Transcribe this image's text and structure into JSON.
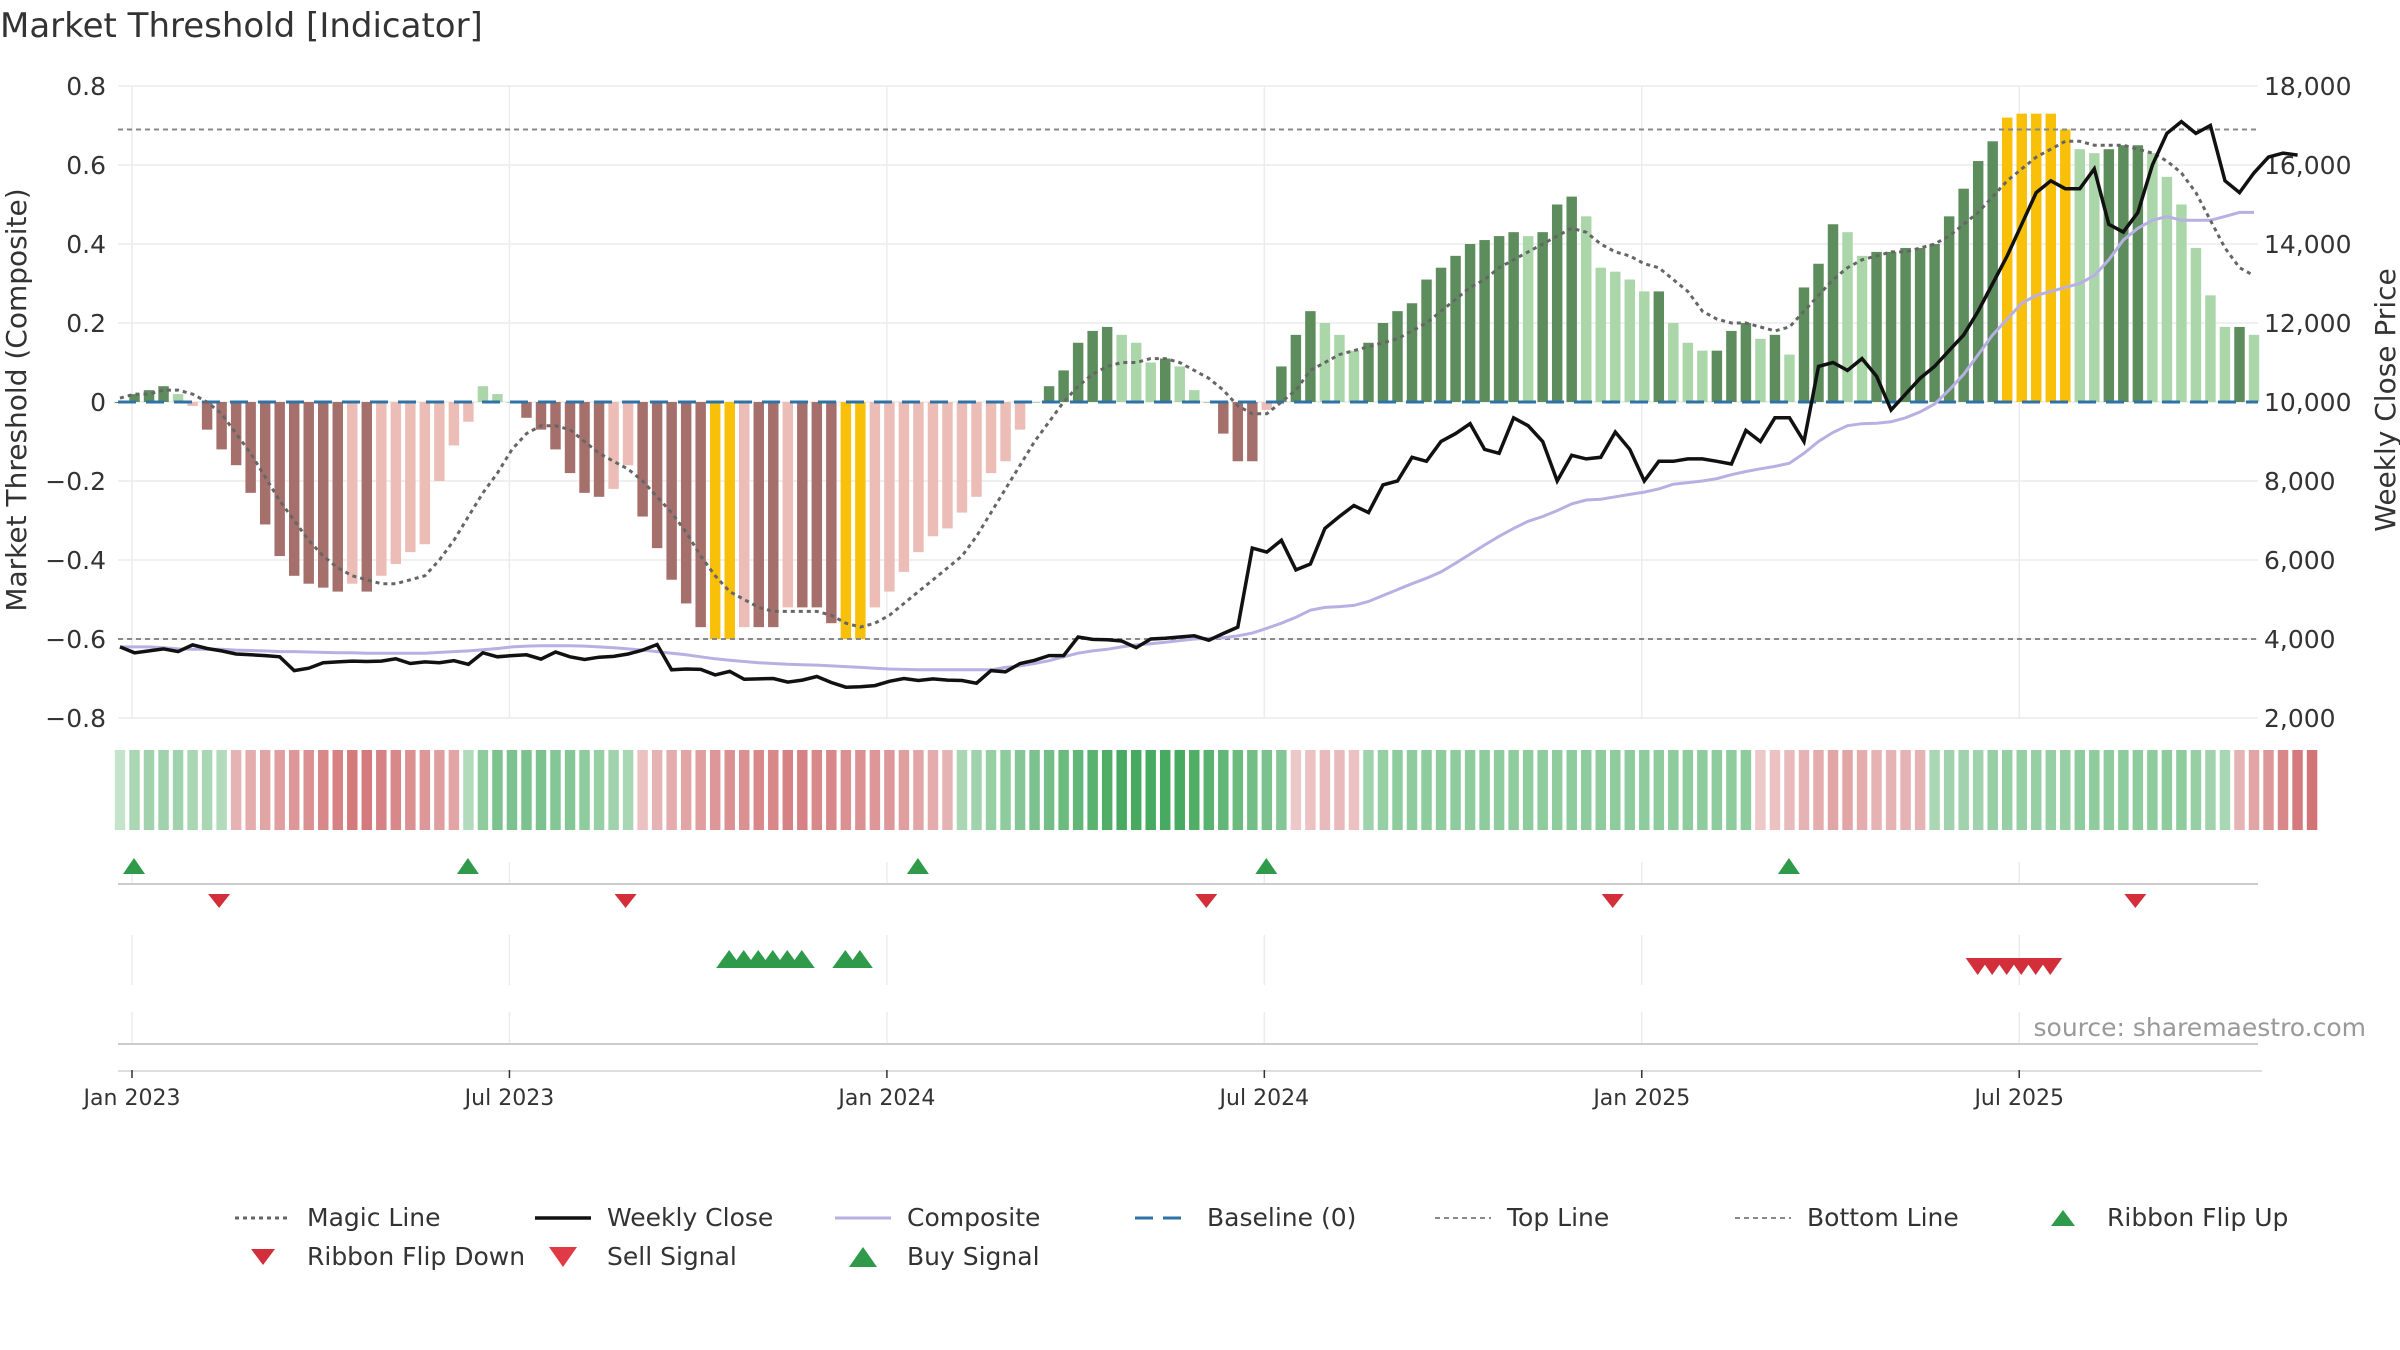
{
  "title": "Market Threshold [Indicator]",
  "source": "source: sharemaestro.com",
  "colors": {
    "bar_pos_strong": "#5d8d5d",
    "bar_pos_light": "#abd6a9",
    "bar_neg_strong": "#a5706b",
    "bar_neg_light": "#ecbdb7",
    "bar_extreme": "#f8c009",
    "magic": "#666666",
    "weekly_close": "#111111",
    "composite": "#b8b0e2",
    "baseline": "#2f73a6",
    "threshold": "#888888",
    "buy": "#2e9a4a",
    "sell": "#d32f3a",
    "grid": "#ececec"
  },
  "chart_data": {
    "type": "bar",
    "x_tick_labels": [
      "Jan 2023",
      "Jul 2023",
      "Jan 2024",
      "Jul 2024",
      "Jan 2025",
      "Jul 2025"
    ],
    "left_axis": {
      "label": "Market Threshold (Composite)",
      "range": [
        -0.8,
        0.8
      ],
      "ticks": [
        "−0.8",
        "−0.6",
        "−0.4",
        "−0.2",
        "0",
        "0.2",
        "0.4",
        "0.6",
        "0.8"
      ]
    },
    "right_axis": {
      "label": "Weekly Close Price",
      "range": [
        2000,
        18000
      ],
      "ticks": [
        "2,000",
        "4,000",
        "6,000",
        "8,000",
        "10,000",
        "12,000",
        "14,000",
        "16,000",
        "18,000"
      ]
    },
    "top_line": 0.69,
    "bottom_line": -0.6,
    "series": [
      {
        "name": "Composite (bars)",
        "values": [
          0.0,
          0.02,
          0.03,
          0.04,
          0.02,
          -0.01,
          -0.07,
          -0.12,
          -0.16,
          -0.23,
          -0.31,
          -0.39,
          -0.44,
          -0.46,
          -0.47,
          -0.48,
          -0.46,
          -0.48,
          -0.44,
          -0.41,
          -0.38,
          -0.36,
          -0.2,
          -0.11,
          -0.05,
          0.04,
          0.02,
          0.0,
          -0.04,
          -0.07,
          -0.12,
          -0.18,
          -0.23,
          -0.24,
          -0.22,
          -0.16,
          -0.29,
          -0.37,
          -0.45,
          -0.51,
          -0.57,
          -0.6,
          -0.6,
          -0.57,
          -0.57,
          -0.57,
          -0.52,
          -0.52,
          -0.52,
          -0.56,
          -0.6,
          -0.6,
          -0.52,
          -0.48,
          -0.43,
          -0.38,
          -0.34,
          -0.32,
          -0.28,
          -0.24,
          -0.18,
          -0.15,
          -0.07,
          0.0,
          0.04,
          0.08,
          0.15,
          0.18,
          0.19,
          0.17,
          0.15,
          0.1,
          0.11,
          0.09,
          0.03,
          0.0,
          -0.08,
          -0.15,
          -0.15,
          -0.02,
          0.09,
          0.17,
          0.23,
          0.2,
          0.17,
          0.13,
          0.15,
          0.2,
          0.23,
          0.25,
          0.31,
          0.34,
          0.37,
          0.4,
          0.41,
          0.42,
          0.43,
          0.42,
          0.43,
          0.5,
          0.52,
          0.47,
          0.34,
          0.33,
          0.31,
          0.28,
          0.28,
          0.2,
          0.15,
          0.13,
          0.13,
          0.18,
          0.2,
          0.16,
          0.17,
          0.12,
          0.29,
          0.35,
          0.45,
          0.43,
          0.37,
          0.38,
          0.38,
          0.39,
          0.39,
          0.4,
          0.47,
          0.54,
          0.61,
          0.66,
          0.72,
          0.73,
          0.73,
          0.73,
          0.69,
          0.64,
          0.63,
          0.64,
          0.65,
          0.65,
          0.63,
          0.57,
          0.5,
          0.39,
          0.27,
          0.19,
          0.19,
          0.17
        ]
      },
      {
        "name": "Magic Line",
        "values": [
          0.01,
          0.02,
          0.02,
          0.03,
          0.03,
          0.02,
          0.0,
          -0.03,
          -0.08,
          -0.13,
          -0.19,
          -0.25,
          -0.3,
          -0.35,
          -0.39,
          -0.42,
          -0.44,
          -0.45,
          -0.46,
          -0.46,
          -0.45,
          -0.44,
          -0.4,
          -0.35,
          -0.29,
          -0.23,
          -0.18,
          -0.12,
          -0.08,
          -0.06,
          -0.06,
          -0.07,
          -0.1,
          -0.13,
          -0.15,
          -0.17,
          -0.2,
          -0.24,
          -0.28,
          -0.33,
          -0.39,
          -0.44,
          -0.48,
          -0.5,
          -0.52,
          -0.53,
          -0.53,
          -0.53,
          -0.53,
          -0.54,
          -0.56,
          -0.57,
          -0.56,
          -0.54,
          -0.51,
          -0.48,
          -0.45,
          -0.42,
          -0.39,
          -0.34,
          -0.28,
          -0.22,
          -0.16,
          -0.1,
          -0.05,
          0.0,
          0.04,
          0.07,
          0.09,
          0.1,
          0.1,
          0.11,
          0.11,
          0.1,
          0.08,
          0.06,
          0.03,
          -0.01,
          -0.03,
          -0.03,
          0.0,
          0.03,
          0.08,
          0.1,
          0.12,
          0.13,
          0.14,
          0.15,
          0.16,
          0.18,
          0.2,
          0.23,
          0.26,
          0.29,
          0.31,
          0.34,
          0.36,
          0.38,
          0.4,
          0.42,
          0.44,
          0.43,
          0.4,
          0.38,
          0.37,
          0.35,
          0.34,
          0.31,
          0.28,
          0.23,
          0.21,
          0.2,
          0.2,
          0.19,
          0.18,
          0.19,
          0.23,
          0.27,
          0.31,
          0.34,
          0.36,
          0.37,
          0.38,
          0.38,
          0.39,
          0.4,
          0.42,
          0.45,
          0.48,
          0.52,
          0.56,
          0.59,
          0.62,
          0.64,
          0.66,
          0.66,
          0.65,
          0.65,
          0.65,
          0.64,
          0.63,
          0.61,
          0.58,
          0.53,
          0.46,
          0.39,
          0.34,
          0.32
        ]
      },
      {
        "name": "Weekly Close",
        "values": [
          3800,
          3650,
          3700,
          3750,
          3680,
          3850,
          3760,
          3700,
          3620,
          3600,
          3580,
          3550,
          3200,
          3260,
          3400,
          3420,
          3440,
          3430,
          3440,
          3500,
          3380,
          3420,
          3400,
          3450,
          3360,
          3650,
          3550,
          3580,
          3600,
          3490,
          3670,
          3550,
          3480,
          3540,
          3560,
          3620,
          3720,
          3860,
          3220,
          3240,
          3230,
          3090,
          3180,
          2980,
          2990,
          3000,
          2910,
          2960,
          3050,
          2900,
          2780,
          2790,
          2820,
          2930,
          3000,
          2950,
          2990,
          2960,
          2950,
          2880,
          3200,
          3170,
          3380,
          3460,
          3580,
          3580,
          4050,
          3990,
          3980,
          3950,
          3780,
          4000,
          4020,
          4050,
          4080,
          3970,
          4140,
          4300,
          6300,
          6200,
          6500,
          5750,
          5900,
          6800,
          7100,
          7380,
          7200,
          7900,
          8000,
          8600,
          8500,
          9000,
          9200,
          9450,
          8800,
          8700,
          9600,
          9400,
          9000,
          8000,
          8650,
          8560,
          8600,
          9240,
          8800,
          8000,
          8500,
          8500,
          8560,
          8560,
          8500,
          8430,
          9280,
          9000,
          9600,
          9600,
          9000,
          10900,
          11000,
          10800,
          11100,
          10650,
          9800,
          10200,
          10600,
          10900,
          11300,
          11700,
          12300,
          13000,
          13700,
          14500,
          15300,
          15600,
          15400,
          15400,
          15900,
          14500,
          14300,
          14800,
          16000,
          16800,
          17100,
          16800,
          17000,
          15600,
          15300,
          15800,
          16200,
          16300,
          16250
        ]
      },
      {
        "name": "Composite",
        "values": [
          -0.62,
          -0.62,
          -0.62,
          -0.622,
          -0.625,
          -0.626,
          -0.626,
          -0.626,
          -0.628,
          -0.629,
          -0.63,
          -0.632,
          -0.632,
          -0.633,
          -0.634,
          -0.635,
          -0.635,
          -0.636,
          -0.636,
          -0.636,
          -0.636,
          -0.636,
          -0.634,
          -0.632,
          -0.63,
          -0.627,
          -0.624,
          -0.62,
          -0.618,
          -0.617,
          -0.617,
          -0.617,
          -0.618,
          -0.62,
          -0.622,
          -0.625,
          -0.628,
          -0.632,
          -0.636,
          -0.64,
          -0.645,
          -0.65,
          -0.654,
          -0.657,
          -0.66,
          -0.662,
          -0.664,
          -0.665,
          -0.666,
          -0.668,
          -0.67,
          -0.672,
          -0.674,
          -0.676,
          -0.677,
          -0.678,
          -0.678,
          -0.678,
          -0.678,
          -0.678,
          -0.678,
          -0.672,
          -0.668,
          -0.662,
          -0.655,
          -0.645,
          -0.636,
          -0.63,
          -0.626,
          -0.62,
          -0.615,
          -0.612,
          -0.608,
          -0.604,
          -0.6,
          -0.598,
          -0.597,
          -0.592,
          -0.585,
          -0.573,
          -0.56,
          -0.545,
          -0.527,
          -0.52,
          -0.518,
          -0.515,
          -0.505,
          -0.49,
          -0.475,
          -0.46,
          -0.446,
          -0.43,
          -0.408,
          -0.385,
          -0.362,
          -0.34,
          -0.32,
          -0.302,
          -0.29,
          -0.275,
          -0.258,
          -0.248,
          -0.246,
          -0.24,
          -0.234,
          -0.228,
          -0.22,
          -0.208,
          -0.204,
          -0.2,
          -0.194,
          -0.184,
          -0.176,
          -0.169,
          -0.163,
          -0.155,
          -0.13,
          -0.1,
          -0.077,
          -0.06,
          -0.055,
          -0.054,
          -0.05,
          -0.04,
          -0.025,
          -0.005,
          0.03,
          0.07,
          0.12,
          0.17,
          0.21,
          0.25,
          0.27,
          0.28,
          0.29,
          0.3,
          0.32,
          0.36,
          0.41,
          0.44,
          0.46,
          0.47,
          0.46,
          0.46,
          0.46,
          0.47,
          0.48,
          0.48
        ]
      },
      {
        "name": "Ribbon",
        "values": [
          0.1,
          0.25,
          0.3,
          0.3,
          0.3,
          0.25,
          0.25,
          0.2,
          -0.3,
          -0.35,
          -0.4,
          -0.45,
          -0.5,
          -0.55,
          -0.6,
          -0.65,
          -0.7,
          -0.7,
          -0.65,
          -0.6,
          -0.55,
          -0.5,
          -0.45,
          -0.4,
          0.2,
          0.4,
          0.5,
          0.5,
          0.5,
          0.5,
          0.45,
          0.45,
          0.4,
          0.35,
          0.3,
          0.25,
          -0.2,
          -0.3,
          -0.35,
          -0.4,
          -0.45,
          -0.5,
          -0.55,
          -0.55,
          -0.6,
          -0.6,
          -0.65,
          -0.65,
          -0.6,
          -0.6,
          -0.55,
          -0.55,
          -0.5,
          -0.5,
          -0.45,
          -0.4,
          -0.35,
          -0.3,
          0.25,
          0.3,
          0.35,
          0.4,
          0.45,
          0.5,
          0.55,
          0.6,
          0.65,
          0.7,
          0.75,
          0.8,
          0.8,
          0.8,
          0.8,
          0.8,
          0.75,
          0.7,
          0.65,
          0.6,
          0.55,
          0.5,
          0.45,
          -0.15,
          -0.2,
          -0.25,
          -0.25,
          -0.2,
          0.3,
          0.35,
          0.4,
          0.4,
          0.4,
          0.4,
          0.4,
          0.4,
          0.4,
          0.4,
          0.4,
          0.4,
          0.4,
          0.4,
          0.4,
          0.4,
          0.4,
          0.4,
          0.4,
          0.4,
          0.4,
          0.4,
          0.4,
          0.4,
          0.4,
          0.4,
          0.4,
          -0.15,
          -0.2,
          -0.25,
          -0.3,
          -0.35,
          -0.4,
          -0.4,
          -0.35,
          -0.3,
          -0.3,
          -0.3,
          -0.3,
          0.25,
          0.3,
          0.3,
          0.3,
          0.35,
          0.35,
          0.35,
          0.35,
          0.35,
          0.35,
          0.4,
          0.4,
          0.4,
          0.4,
          0.4,
          0.4,
          0.4,
          0.4,
          0.35,
          0.3,
          0.25,
          -0.3,
          -0.4,
          -0.5,
          -0.6,
          -0.7,
          -0.75
        ]
      }
    ],
    "ribbon_flip_up_weeks": [
      0,
      23,
      54,
      78,
      114
    ],
    "ribbon_flip_down_weeks": [
      6,
      34,
      74,
      102,
      138
    ],
    "buy_signal_weeks": [
      41,
      42,
      43,
      44,
      45,
      46,
      49,
      50
    ],
    "sell_signal_weeks": [
      127,
      128,
      129,
      130,
      131,
      132
    ],
    "legend": [
      {
        "label": "Magic Line",
        "symbol": "dotted"
      },
      {
        "label": "Weekly Close",
        "symbol": "solid-black"
      },
      {
        "label": "Composite",
        "symbol": "solid-lavender"
      },
      {
        "label": "Baseline (0)",
        "symbol": "dashed-blue"
      },
      {
        "label": "Top Line",
        "symbol": "dashed-grey"
      },
      {
        "label": "Bottom Line",
        "symbol": "dashed-grey"
      },
      {
        "label": "Ribbon Flip Up",
        "symbol": "triangle-up"
      },
      {
        "label": "Ribbon Flip Down",
        "symbol": "triangle-down"
      },
      {
        "label": "Sell Signal",
        "symbol": "triangle-down-red"
      },
      {
        "label": "Buy Signal",
        "symbol": "triangle-up-green"
      }
    ]
  }
}
